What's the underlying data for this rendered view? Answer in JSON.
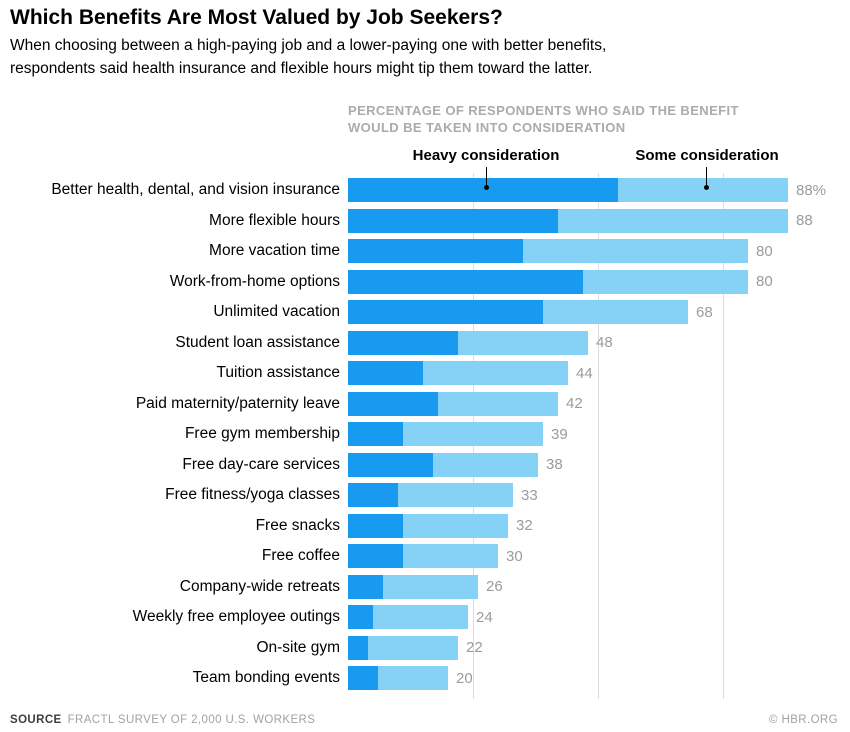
{
  "header": {
    "title": "Which Benefits Are Most Valued by Job Seekers?",
    "subtitle_line1": "When choosing between a high-paying job and a lower-paying one with better benefits,",
    "subtitle_line2": "respondents said health insurance and flexible hours might tip them toward the latter."
  },
  "axis_note": {
    "line1": "PERCENTAGE OF RESPONDENTS WHO SAID THE BENEFIT",
    "line2": "WOULD BE TAKEN INTO CONSIDERATION"
  },
  "legend": {
    "heavy_label": "Heavy consideration",
    "some_label": "Some consideration"
  },
  "footer": {
    "source_label": "SOURCE",
    "source_text": "FRACTL SURVEY OF 2,000 U.S. WORKERS",
    "credit": "© HBR.ORG"
  },
  "colors": {
    "heavy": "#189af0",
    "some": "#85d2f6",
    "gridline": "#dcdcdc",
    "value_label": "#9b9b9b"
  },
  "chart_data": {
    "type": "bar",
    "orientation": "horizontal",
    "stacked": true,
    "title": "Which Benefits Are Most Valued by Job Seekers?",
    "xlabel": "Percentage of respondents who said the benefit would be taken into consideration",
    "ylabel": "",
    "xlim": [
      0,
      100
    ],
    "gridlines": [
      25,
      50,
      75
    ],
    "legend_position": "top",
    "categories": [
      "Better health, dental, and vision insurance",
      "More flexible hours",
      "More vacation time",
      "Work-from-home options",
      "Unlimited vacation",
      "Student loan assistance",
      "Tuition assistance",
      "Paid maternity/paternity leave",
      "Free gym membership",
      "Free day-care services",
      "Free fitness/yoga classes",
      "Free snacks",
      "Free coffee",
      "Company-wide retreats",
      "Weekly free employee outings",
      "On-site gym",
      "Team bonding events"
    ],
    "series": [
      {
        "name": "Heavy consideration",
        "values": [
          54,
          42,
          35,
          47,
          39,
          22,
          15,
          18,
          11,
          17,
          10,
          11,
          11,
          7,
          5,
          4,
          6
        ]
      },
      {
        "name": "Some consideration",
        "values": [
          34,
          46,
          45,
          33,
          29,
          26,
          29,
          24,
          28,
          21,
          23,
          21,
          19,
          19,
          19,
          18,
          14
        ]
      }
    ],
    "totals": [
      88,
      88,
      80,
      80,
      68,
      48,
      44,
      42,
      39,
      38,
      33,
      32,
      30,
      26,
      24,
      22,
      20
    ],
    "total_labels": [
      "88%",
      "88",
      "80",
      "80",
      "68",
      "48",
      "44",
      "42",
      "39",
      "38",
      "33",
      "32",
      "30",
      "26",
      "24",
      "22",
      "20"
    ]
  }
}
